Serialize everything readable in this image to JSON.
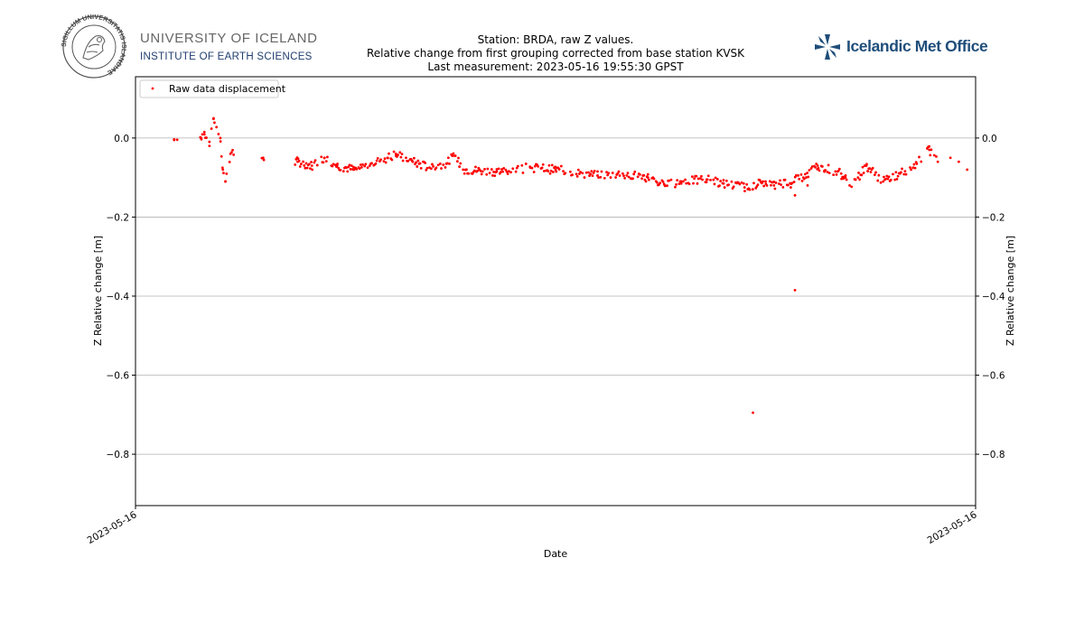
{
  "header": {
    "university_name": "UNIVERSITY OF ICELAND",
    "institute_name": "INSTITUTE OF EARTH SCIENCES",
    "seal_text": "SIGILLUM UNIVERSITATIS ISLANDIAE",
    "met_office_name": "Icelandic Met Office",
    "title_lines": [
      "Station: BRDA, raw Z values.",
      "Relative change from first grouping corrected from base station KVSK",
      "Last measurement: 2023-05-16 19:55:30 GPST"
    ]
  },
  "colors": {
    "points": "#ff0000",
    "grid": "#b0b0b0",
    "imo_brand": "#1f4e7a",
    "institute": "#1f3d6e"
  },
  "chart_data": {
    "type": "scatter",
    "xlabel": "Date",
    "ylabel": "Z Relative change [m]",
    "x_tick_labels": [
      "2023-05-16",
      "2023-05-16"
    ],
    "xlim": [
      0,
      1
    ],
    "ylim": [
      -0.93,
      0.155
    ],
    "y_ticks": [
      0.0,
      -0.2,
      -0.4,
      -0.6,
      -0.8
    ],
    "y_tick_labels": [
      "0.0",
      "−0.2",
      "−0.4",
      "−0.6",
      "−0.8"
    ],
    "grid": "horizontal",
    "legend": {
      "position": "top-left",
      "entries": [
        "Raw data displacement"
      ]
    },
    "series": [
      {
        "name": "Raw data displacement",
        "anchors": [
          [
            0.046,
            -0.005
          ],
          [
            0.078,
            0.0
          ],
          [
            0.082,
            0.015
          ],
          [
            0.088,
            -0.02
          ],
          [
            0.093,
            0.05
          ],
          [
            0.101,
            0.0
          ],
          [
            0.104,
            -0.08
          ],
          [
            0.107,
            -0.11
          ],
          [
            0.113,
            -0.04
          ],
          [
            0.152,
            -0.05
          ],
          [
            0.193,
            -0.06
          ],
          [
            0.21,
            -0.07
          ],
          [
            0.225,
            -0.05
          ],
          [
            0.24,
            -0.07
          ],
          [
            0.26,
            -0.08
          ],
          [
            0.28,
            -0.065
          ],
          [
            0.3,
            -0.05
          ],
          [
            0.31,
            -0.04
          ],
          [
            0.33,
            -0.06
          ],
          [
            0.35,
            -0.075
          ],
          [
            0.37,
            -0.065
          ],
          [
            0.38,
            -0.045
          ],
          [
            0.39,
            -0.08
          ],
          [
            0.43,
            -0.085
          ],
          [
            0.47,
            -0.075
          ],
          [
            0.5,
            -0.08
          ],
          [
            0.55,
            -0.095
          ],
          [
            0.58,
            -0.09
          ],
          [
            0.61,
            -0.1
          ],
          [
            0.63,
            -0.12
          ],
          [
            0.65,
            -0.11
          ],
          [
            0.68,
            -0.105
          ],
          [
            0.7,
            -0.115
          ],
          [
            0.725,
            -0.125
          ],
          [
            0.75,
            -0.11
          ],
          [
            0.76,
            -0.12
          ],
          [
            0.795,
            -0.1
          ],
          [
            0.812,
            -0.07
          ],
          [
            0.84,
            -0.09
          ],
          [
            0.8,
            -0.12
          ],
          [
            0.78,
            -0.125
          ],
          [
            0.82,
            -0.085
          ],
          [
            0.845,
            -0.1
          ],
          [
            0.85,
            -0.12
          ],
          [
            0.86,
            -0.1
          ],
          [
            0.87,
            -0.07
          ],
          [
            0.89,
            -0.11
          ],
          [
            0.91,
            -0.09
          ],
          [
            0.93,
            -0.065
          ],
          [
            0.945,
            -0.03
          ],
          [
            0.955,
            -0.06
          ],
          [
            0.97,
            -0.05
          ],
          [
            0.98,
            -0.06
          ],
          [
            0.99,
            -0.08
          ]
        ],
        "outliers": [
          [
            0.735,
            -0.695
          ],
          [
            0.785,
            -0.385
          ],
          [
            0.785,
            -0.145
          ]
        ]
      }
    ]
  }
}
